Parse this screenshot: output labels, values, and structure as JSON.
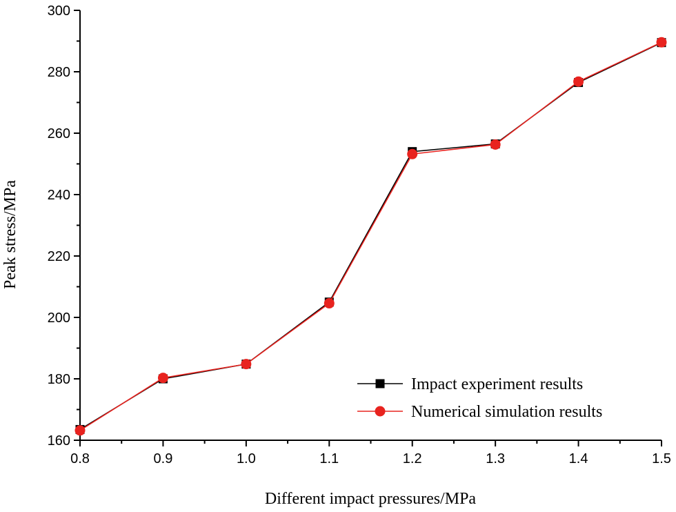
{
  "chart_data": {
    "type": "line",
    "title": "",
    "xlabel": "Different impact pressures/MPa",
    "ylabel": "Peak stress/MPa",
    "xlim": [
      0.8,
      1.5
    ],
    "ylim": [
      160,
      300
    ],
    "x_ticks": [
      0.8,
      0.9,
      1.0,
      1.1,
      1.2,
      1.3,
      1.4,
      1.5
    ],
    "x_tick_labels": [
      "0.8",
      "0.9",
      "1.0",
      "1.1",
      "1.2",
      "1.3",
      "1.4",
      "1.5"
    ],
    "y_ticks": [
      160,
      180,
      200,
      220,
      240,
      260,
      280,
      300
    ],
    "y_tick_labels": [
      "160",
      "180",
      "200",
      "220",
      "240",
      "260",
      "280",
      "300"
    ],
    "grid": false,
    "legend_position": "bottom-right",
    "x": [
      0.8,
      0.9,
      1.0,
      1.1,
      1.2,
      1.3,
      1.4,
      1.5
    ],
    "series": [
      {
        "name": "Impact experiment results",
        "color": "#000000",
        "marker": "square",
        "values": [
          163.5,
          180.0,
          184.8,
          205.0,
          254.0,
          256.5,
          276.5,
          289.5
        ]
      },
      {
        "name": "Numerical simulation results",
        "color": "#e8231f",
        "marker": "circle",
        "values": [
          163.2,
          180.3,
          184.8,
          204.6,
          253.2,
          256.3,
          276.8,
          289.6
        ]
      }
    ]
  }
}
